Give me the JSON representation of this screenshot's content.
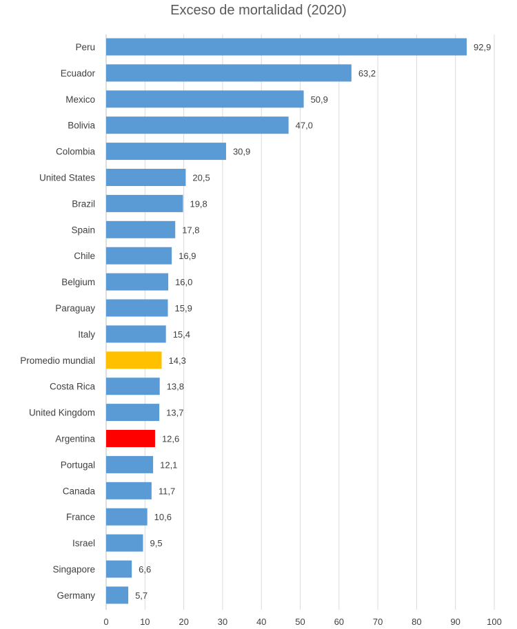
{
  "chart_data": {
    "type": "bar",
    "orientation": "horizontal",
    "title": "Exceso de mortalidad (2020)",
    "xlim": [
      0,
      100
    ],
    "x_ticks": [
      "0",
      "10",
      "20",
      "30",
      "40",
      "50",
      "60",
      "70",
      "80",
      "90",
      "100"
    ],
    "grid": true,
    "categories": [
      "Peru",
      "Ecuador",
      "Mexico",
      "Bolivia",
      "Colombia",
      "United States",
      "Brazil",
      "Spain",
      "Chile",
      "Belgium",
      "Paraguay",
      "Italy",
      "Promedio mundial",
      "Costa Rica",
      "United Kingdom",
      "Argentina",
      "Portugal",
      "Canada",
      "France",
      "Israel",
      "Singapore",
      "Germany"
    ],
    "values": [
      92.9,
      63.2,
      50.9,
      47.0,
      30.9,
      20.5,
      19.8,
      17.8,
      16.9,
      16.0,
      15.9,
      15.4,
      14.3,
      13.8,
      13.7,
      12.6,
      12.1,
      11.7,
      10.6,
      9.5,
      6.6,
      5.7
    ],
    "value_labels": [
      "92,9",
      "63,2",
      "50,9",
      "47,0",
      "30,9",
      "20,5",
      "19,8",
      "17,8",
      "16,9",
      "16,0",
      "15,9",
      "15,4",
      "14,3",
      "13,8",
      "13,7",
      "12,6",
      "12,1",
      "11,7",
      "10,6",
      "9,5",
      "6,6",
      "5,7"
    ],
    "colors": {
      "default": "#5b9bd5",
      "Promedio mundial": "#ffc000",
      "Argentina": "#ff0000"
    }
  }
}
